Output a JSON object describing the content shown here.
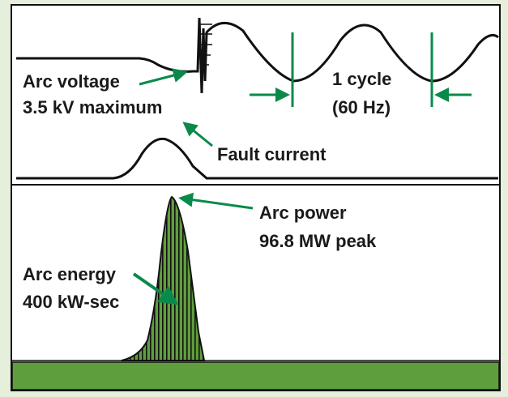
{
  "labels": {
    "arc_voltage": "Arc voltage",
    "arc_voltage_max": "3.5 kV maximum",
    "cycle": "1 cycle",
    "cycle_freq": "(60 Hz)",
    "fault_current": "Fault current",
    "arc_power": "Arc power",
    "arc_power_peak": "96.8 MW peak",
    "arc_energy": "Arc energy",
    "arc_energy_value": "400 kW-sec"
  }
}
